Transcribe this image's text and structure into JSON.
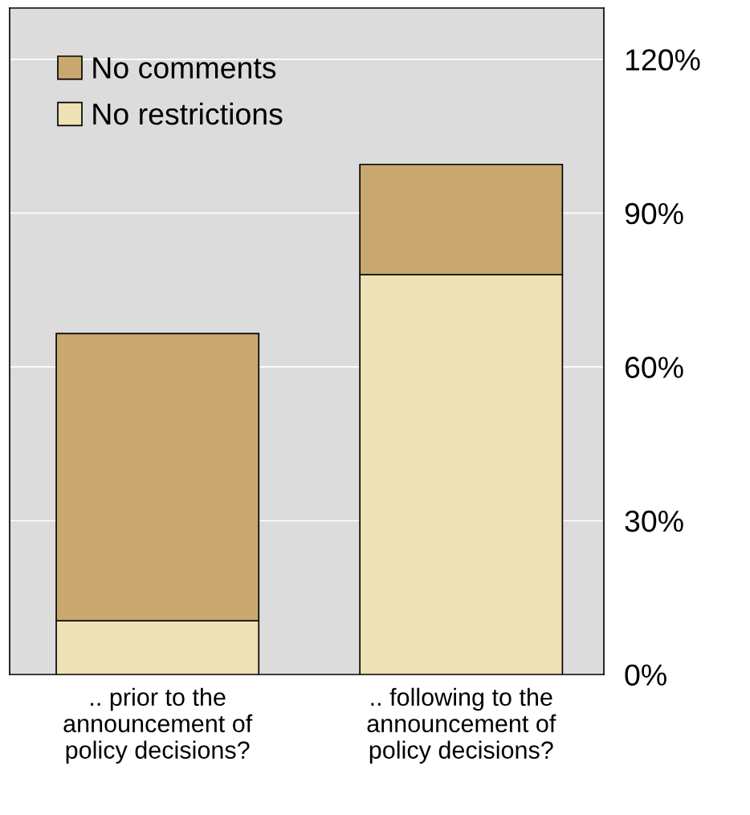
{
  "chart_data": {
    "type": "bar",
    "stacked": true,
    "categories": [
      ".. prior to the\nannouncement of\npolicy decisions?",
      ".. following to the\nannouncement of\npolicy decisions?"
    ],
    "series": [
      {
        "name": "No restrictions",
        "color": "#ede1b5",
        "values": [
          10.5,
          78
        ]
      },
      {
        "name": "No comments",
        "color": "#c8a86e",
        "values": [
          56,
          21.5
        ]
      }
    ],
    "ylim": [
      0,
      130
    ],
    "yticks": [
      {
        "value": 0,
        "label": "0%"
      },
      {
        "value": 30,
        "label": "30%"
      },
      {
        "value": 60,
        "label": "60%"
      },
      {
        "value": 90,
        "label": "90%"
      },
      {
        "value": 120,
        "label": "120%"
      }
    ],
    "grid": "y",
    "legend": "top left"
  }
}
